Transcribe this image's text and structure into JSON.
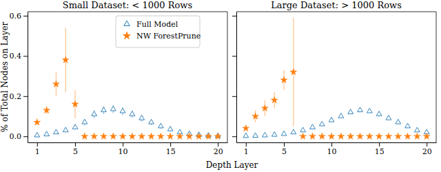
{
  "chart_data": [
    {
      "type": "scatter",
      "title": "Small Dataset: < 1000 Rows",
      "x_label": "Depth Layer",
      "y_label": "% of Total Nodes on Layer",
      "x": [
        1,
        2,
        3,
        4,
        5,
        6,
        7,
        8,
        9,
        10,
        11,
        12,
        13,
        14,
        15,
        16,
        17,
        18,
        19,
        20
      ],
      "series": [
        {
          "name": "Full Model",
          "color": "#1f77b4",
          "marker": "triangle",
          "values": [
            0.005,
            0.01,
            0.02,
            0.03,
            0.045,
            0.07,
            0.11,
            0.13,
            0.135,
            0.125,
            0.11,
            0.09,
            0.07,
            0.05,
            0.035,
            0.02,
            0.012,
            0.007,
            0.004,
            0.002
          ],
          "errors": [
            0.003,
            0.004,
            0.006,
            0.008,
            0.01,
            0.015,
            0.02,
            0.02,
            0.02,
            0.02,
            0.018,
            0.016,
            0.014,
            0.012,
            0.01,
            0.008,
            0.006,
            0.004,
            0.003,
            0.002
          ]
        },
        {
          "name": "NW ForestPrune",
          "color": "#ff7f0e",
          "marker": "star",
          "values": [
            0.07,
            0.13,
            0.26,
            0.38,
            0.16,
            0,
            0,
            0,
            0,
            0,
            0,
            0,
            0,
            0,
            0,
            0,
            0,
            0,
            0,
            0
          ],
          "errors": [
            0.01,
            0.02,
            0.06,
            0.16,
            0.07,
            0,
            0,
            0,
            0,
            0,
            0,
            0,
            0,
            0,
            0,
            0,
            0,
            0,
            0,
            0
          ]
        }
      ],
      "xlim": [
        0,
        21
      ],
      "ylim": [
        -0.03,
        0.62
      ],
      "xticks": [
        1,
        5,
        10,
        15,
        20
      ],
      "yticks": [
        {
          "value": 0,
          "label": "0.0"
        },
        {
          "value": 0.2,
          "label": "0.2"
        },
        {
          "value": 0.4,
          "label": "0.4"
        },
        {
          "value": 0.6,
          "label": "0.6"
        }
      ],
      "legend": "upper right",
      "grid": false
    },
    {
      "type": "scatter",
      "title": "Large Dataset: > 1000 Rows",
      "x": [
        1,
        2,
        3,
        4,
        5,
        6,
        7,
        8,
        9,
        10,
        11,
        12,
        13,
        14,
        15,
        16,
        17,
        18,
        19,
        20
      ],
      "series": [
        {
          "color": "#1f77b4",
          "marker": "triangle",
          "values": [
            0.002,
            0.003,
            0.005,
            0.008,
            0.012,
            0.02,
            0.03,
            0.045,
            0.06,
            0.08,
            0.1,
            0.12,
            0.13,
            0.125,
            0.11,
            0.09,
            0.07,
            0.05,
            0.03,
            0.02
          ],
          "errors": [
            0.001,
            0.001,
            0.002,
            0.002,
            0.003,
            0.004,
            0.004,
            0.005,
            0.005,
            0.006,
            0.006,
            0.006,
            0.006,
            0.006,
            0.006,
            0.005,
            0.005,
            0.004,
            0.003,
            0.003
          ]
        },
        {
          "color": "#ff7f0e",
          "marker": "star",
          "values": [
            0.04,
            0.1,
            0.14,
            0.18,
            0.28,
            0.32,
            0,
            0,
            0,
            0,
            0,
            0,
            0,
            0,
            0,
            0,
            0,
            0,
            0,
            0
          ],
          "errors": [
            0.01,
            0.03,
            0.04,
            0.04,
            0.05,
            0.27,
            0,
            0,
            0,
            0,
            0,
            0,
            0,
            0,
            0,
            0,
            0,
            0,
            0,
            0
          ]
        }
      ],
      "xlim": [
        0,
        21
      ],
      "ylim": [
        -0.03,
        0.62
      ],
      "xticks": [
        1,
        5,
        10,
        15,
        20
      ],
      "yticks": [
        {
          "value": 0,
          "label": "0.0"
        },
        {
          "value": 0.2,
          "label": "0.2"
        },
        {
          "value": 0.4,
          "label": "0.4"
        },
        {
          "value": 0.6,
          "label": "0.6"
        }
      ],
      "tick_labels": "x",
      "grid": false
    }
  ]
}
